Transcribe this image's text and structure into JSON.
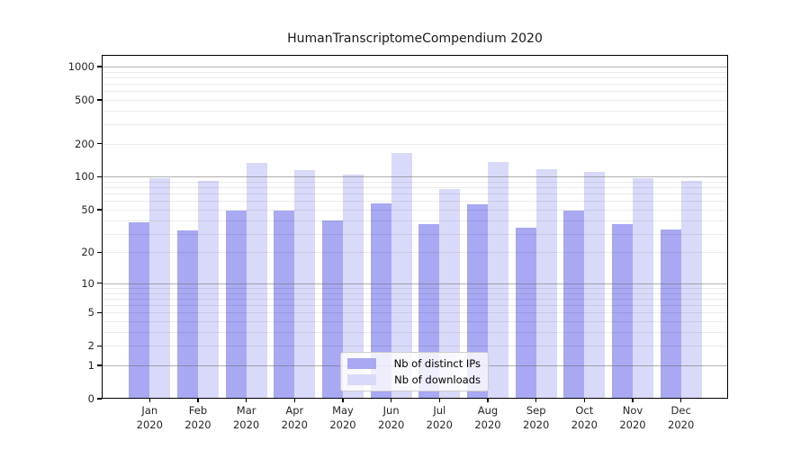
{
  "title": "HumanTranscriptomeCompendium 2020",
  "chart_data": {
    "type": "bar",
    "title": "HumanTranscriptomeCompendium 2020",
    "categories": [
      "Jan",
      "Feb",
      "Mar",
      "Apr",
      "May",
      "Jun",
      "Jul",
      "Aug",
      "Sep",
      "Oct",
      "Nov",
      "Dec"
    ],
    "x_year_label": "2020",
    "series": [
      {
        "name": "Nb of distinct IPs",
        "color": "#a8a8f3",
        "values": [
          38,
          32,
          49,
          49,
          40,
          57,
          37,
          56,
          34,
          49,
          37,
          33
        ]
      },
      {
        "name": "Nb of downloads",
        "color": "#d9d9f9",
        "values": [
          97,
          92,
          134,
          115,
          104,
          165,
          77,
          137,
          118,
          111,
          98,
          91
        ]
      }
    ],
    "xlabel": "",
    "ylabel": "",
    "yscale": "log(1+x)",
    "yticks": [
      0,
      1,
      2,
      5,
      10,
      20,
      50,
      100,
      200,
      500,
      1000
    ],
    "ytick_labels": [
      "0",
      "1",
      "2",
      "5",
      "10",
      "20",
      "50",
      "100",
      "200",
      "500",
      "1000"
    ],
    "ylim": [
      0,
      1275
    ],
    "grid": {
      "on": true,
      "major_lines": [
        1,
        10,
        100,
        1000
      ],
      "minor_lines": [
        2,
        3,
        4,
        5,
        6,
        7,
        8,
        9,
        20,
        30,
        40,
        50,
        60,
        70,
        80,
        90,
        200,
        300,
        400,
        500,
        600,
        700,
        800,
        900
      ]
    },
    "legend": {
      "location": "inside-bottom-center",
      "entries": [
        "Nb of distinct IPs",
        "Nb of downloads"
      ]
    }
  },
  "colors": {
    "bar_distinct_ips": "#a8a8f3",
    "bar_downloads": "#d9d9f9",
    "grid_major": "rgba(110,110,110,0.55)",
    "grid_minor": "rgba(0,0,0,0.08)",
    "frame": "#000000",
    "legend_border": "#cccccc",
    "text": "#262626"
  }
}
